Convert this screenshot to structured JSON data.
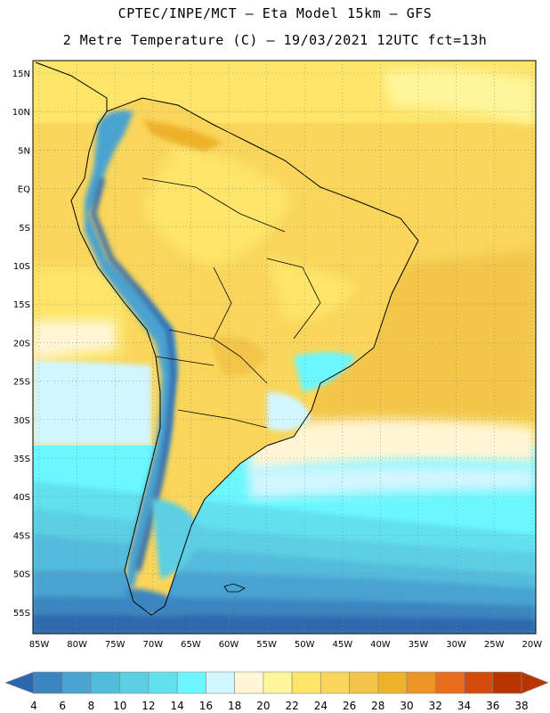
{
  "header": {
    "line1": "CPTEC/INPE/MCT –  Eta Model 15km – GFS",
    "line2": "2 Metre Temperature (C) – 19/03/2021 12UTC fct=13h"
  },
  "map": {
    "lat_labels": [
      "15N",
      "10N",
      "5N",
      "EQ",
      "5S",
      "10S",
      "15S",
      "20S",
      "25S",
      "30S",
      "35S",
      "40S",
      "45S",
      "50S",
      "55S"
    ],
    "lon_labels": [
      "85W",
      "80W",
      "75W",
      "70W",
      "65W",
      "60W",
      "55W",
      "50W",
      "45W",
      "40W",
      "35W",
      "30W",
      "25W",
      "20W"
    ]
  },
  "colorbar": {
    "labels": [
      "4",
      "6",
      "8",
      "10",
      "12",
      "14",
      "16",
      "18",
      "20",
      "22",
      "24",
      "26",
      "28",
      "30",
      "32",
      "34",
      "36",
      "38"
    ],
    "colors": [
      "#2e67ad",
      "#3a85c0",
      "#4aa3d2",
      "#52bcdc",
      "#5ccfe4",
      "#62e0ee",
      "#6af7ff",
      "#d2f6ff",
      "#fff6d6",
      "#fff59a",
      "#fde56a",
      "#f9d65b",
      "#f3c64a",
      "#eeb12a",
      "#ec9424",
      "#e66e1c",
      "#d34b0d",
      "#b83500"
    ]
  }
}
